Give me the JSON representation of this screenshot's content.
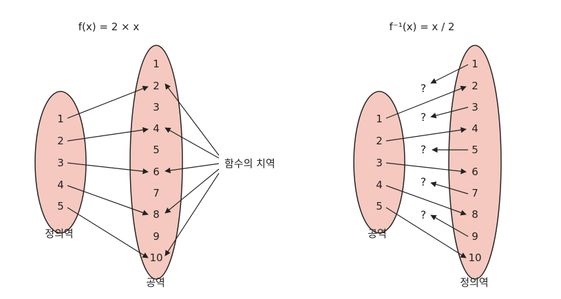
{
  "left": {
    "title": "f(x) = 2 × x",
    "domain_values": [
      "1",
      "2",
      "3",
      "4",
      "5"
    ],
    "codomain_values": [
      "1",
      "2",
      "3",
      "4",
      "5",
      "6",
      "7",
      "8",
      "9",
      "10"
    ],
    "domain_label": "정의역",
    "codomain_label": "공역",
    "range_label": "함수의 치역"
  },
  "right": {
    "title": "f⁻¹(x) = x / 2",
    "domain_values": [
      "1",
      "2",
      "3",
      "4",
      "5"
    ],
    "codomain_values": [
      "1",
      "2",
      "3",
      "4",
      "5",
      "6",
      "7",
      "8",
      "9",
      "10"
    ],
    "domain_label": "공역",
    "codomain_label": "정의역",
    "question_mark": "?"
  },
  "colors": {
    "set_fill": "#f5c9bf",
    "stroke": "#222222"
  }
}
